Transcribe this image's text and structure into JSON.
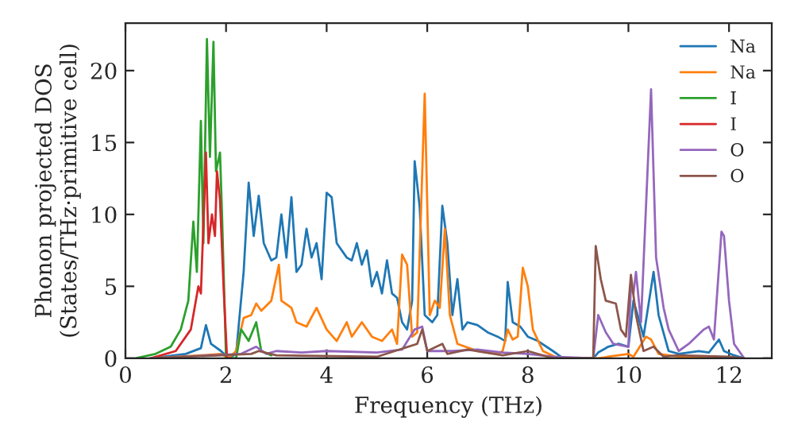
{
  "chart_data": {
    "type": "line",
    "xlabel": "Frequency (THz)",
    "ylabel": "Phonon projected DOS\n(States/THz·primitive cell)",
    "xlim": [
      0,
      12.85
    ],
    "ylim": [
      0,
      23.3
    ],
    "xticks": [
      0,
      2,
      4,
      6,
      8,
      10,
      12
    ],
    "yticks": [
      0,
      5,
      10,
      15,
      20
    ],
    "grid": false,
    "legend": "top right",
    "marker": "none",
    "line_style": "solid",
    "series": [
      {
        "name": "Na",
        "color": "#1f77b4",
        "x": [
          0.5,
          1.2,
          1.5,
          1.6,
          1.7,
          1.9,
          2.05,
          2.2,
          2.35,
          2.45,
          2.55,
          2.65,
          2.75,
          2.9,
          3.0,
          3.1,
          3.2,
          3.3,
          3.4,
          3.5,
          3.6,
          3.7,
          3.8,
          3.9,
          4.0,
          4.1,
          4.2,
          4.4,
          4.5,
          4.6,
          4.7,
          4.8,
          4.9,
          5.0,
          5.1,
          5.2,
          5.3,
          5.4,
          5.5,
          5.6,
          5.7,
          5.75,
          5.85,
          5.95,
          6.1,
          6.2,
          6.3,
          6.4,
          6.5,
          6.6,
          6.7,
          6.8,
          7.0,
          7.2,
          7.4,
          7.55,
          7.6,
          7.7,
          7.85,
          8.0,
          8.2,
          8.5,
          8.7,
          9.3,
          9.4,
          9.6,
          9.8,
          10.0,
          10.1,
          10.2,
          10.3,
          10.5,
          10.6,
          10.8,
          11.0,
          11.4,
          11.6,
          11.8,
          11.9,
          12.1,
          12.3
        ],
        "values": [
          0,
          0.3,
          0.7,
          2.3,
          1,
          0.5,
          0,
          0.3,
          6,
          12.2,
          8.5,
          11.3,
          8,
          6.8,
          7,
          10,
          7,
          11.2,
          6,
          6.5,
          9,
          7,
          8,
          5.5,
          11.5,
          11.2,
          8,
          7,
          6.8,
          8,
          6.5,
          7.5,
          5,
          6,
          4.5,
          6.8,
          4.5,
          4.2,
          2.5,
          2,
          4,
          13.7,
          10.5,
          3,
          2.5,
          3,
          10.6,
          8,
          3,
          5.5,
          2,
          2.5,
          2.3,
          1.8,
          1.5,
          1.2,
          5.3,
          2.5,
          2.2,
          1.5,
          1.2,
          0.5,
          0,
          0,
          0.4,
          0.8,
          1,
          0.8,
          4,
          2.8,
          1.5,
          6,
          3,
          0.5,
          0.3,
          0.5,
          0.4,
          1.3,
          0.5,
          0.2,
          0
        ]
      },
      {
        "name": "Na",
        "color": "#ff7f0e",
        "x": [
          0.5,
          1.5,
          1.9,
          2.05,
          2.2,
          2.35,
          2.5,
          2.6,
          2.7,
          2.9,
          3.05,
          3.1,
          3.3,
          3.4,
          3.6,
          3.8,
          4.0,
          4.2,
          4.4,
          4.5,
          4.7,
          4.9,
          5.1,
          5.3,
          5.4,
          5.5,
          5.6,
          5.7,
          5.8,
          5.95,
          6.05,
          6.15,
          6.25,
          6.35,
          6.45,
          6.6,
          7.0,
          7.4,
          7.5,
          7.6,
          7.7,
          7.8,
          7.9,
          8.0,
          8.1,
          8.3,
          8.6,
          9.4,
          9.6,
          10.0,
          10.1,
          10.35,
          10.45,
          10.6,
          11.0,
          12.0
        ],
        "values": [
          0,
          0.2,
          0.3,
          0,
          0.5,
          2.8,
          3,
          3.8,
          3.3,
          4,
          6.5,
          4,
          3.5,
          2.5,
          2.2,
          3.5,
          2,
          1.2,
          2.5,
          1.5,
          2.5,
          1.5,
          1.2,
          2,
          1,
          7.2,
          6.5,
          1.5,
          1.8,
          18.4,
          3,
          4,
          3.5,
          9,
          3,
          1,
          0.5,
          0.3,
          0.5,
          2,
          1.3,
          1.5,
          6.3,
          5,
          2,
          0.5,
          0,
          0,
          0.1,
          0.3,
          0.1,
          1.5,
          1.3,
          0.3,
          0.1,
          0
        ]
      },
      {
        "name": "I",
        "color": "#2ca02c",
        "x": [
          0.2,
          0.6,
          0.9,
          1.1,
          1.25,
          1.35,
          1.42,
          1.5,
          1.55,
          1.62,
          1.68,
          1.75,
          1.8,
          1.88,
          1.92,
          2.0,
          2.2,
          2.3,
          2.45,
          2.6,
          2.7,
          2.9
        ],
        "values": [
          0,
          0.3,
          0.8,
          2,
          4,
          9.5,
          6,
          16.5,
          8,
          22.2,
          14,
          22,
          13,
          14.3,
          10,
          0,
          0,
          2,
          1.2,
          2.5,
          0.5,
          0.2
        ]
      },
      {
        "name": "I",
        "color": "#d62728",
        "x": [
          0.5,
          1.0,
          1.3,
          1.45,
          1.5,
          1.6,
          1.65,
          1.72,
          1.78,
          1.82,
          1.88,
          1.95,
          2.02,
          2.1
        ],
        "values": [
          0,
          0.5,
          2,
          5,
          4.5,
          14.3,
          8,
          10,
          8.5,
          13,
          11,
          5,
          0,
          0
        ]
      },
      {
        "name": "O",
        "color": "#9467bd",
        "x": [
          0.5,
          2.3,
          2.6,
          2.8,
          3.0,
          3.5,
          4.0,
          5.0,
          5.5,
          5.75,
          5.9,
          6.0,
          6.5,
          7.0,
          7.5,
          8.0,
          8.5,
          9.3,
          9.4,
          9.55,
          9.7,
          10.0,
          10.05,
          10.1,
          10.15,
          10.25,
          10.45,
          10.55,
          10.7,
          10.8,
          11.0,
          11.2,
          11.5,
          11.6,
          11.7,
          11.85,
          11.9,
          12.0,
          12.1,
          12.3
        ],
        "values": [
          0,
          0.3,
          0.8,
          0.3,
          0.5,
          0.4,
          0.5,
          0.4,
          0.6,
          2,
          2.2,
          0.5,
          0.5,
          0.6,
          0.4,
          0.3,
          0.1,
          0,
          3,
          1.8,
          1,
          0.8,
          5,
          4.5,
          6,
          2.5,
          18.7,
          7,
          3.5,
          2,
          0.5,
          1,
          2,
          2.2,
          1.3,
          8.8,
          8.5,
          4,
          1,
          0
        ]
      },
      {
        "name": "O",
        "color": "#8c564b",
        "x": [
          0.5,
          2.5,
          2.65,
          3.0,
          5.0,
          5.8,
          5.9,
          6.0,
          6.3,
          6.4,
          6.8,
          7.5,
          8.0,
          8.5,
          9.3,
          9.35,
          9.45,
          9.55,
          9.75,
          9.85,
          9.95,
          10.05,
          10.15,
          10.3,
          10.5,
          10.7,
          11.0,
          12.0,
          12.3
        ],
        "values": [
          0,
          0.3,
          0.5,
          0.2,
          0.1,
          1,
          2,
          0.5,
          1,
          0.3,
          0.6,
          0.2,
          0.5,
          0,
          0,
          7.8,
          5.5,
          4,
          3.8,
          2,
          1.5,
          5.8,
          3,
          0.5,
          0.8,
          0.1,
          0.2,
          0.1,
          0
        ]
      }
    ]
  }
}
